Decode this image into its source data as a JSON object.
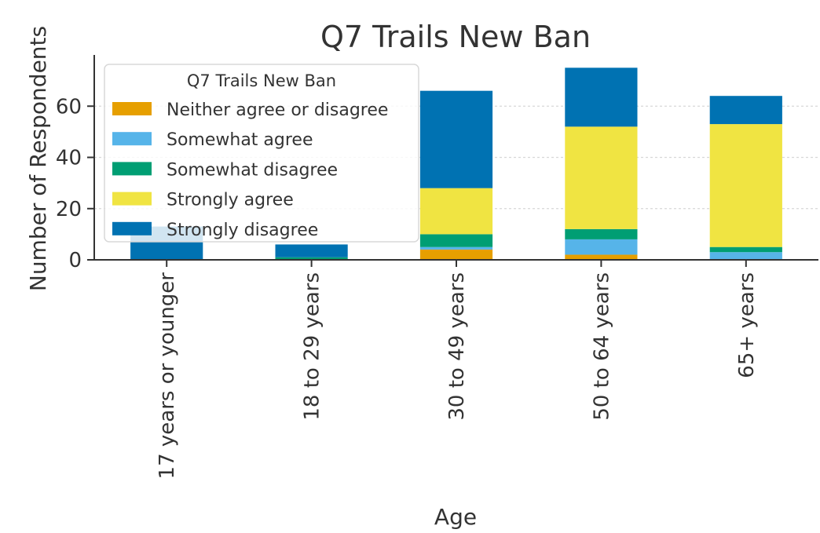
{
  "chart_data": {
    "type": "bar",
    "stacked": true,
    "title": "Q7 Trails New Ban",
    "xlabel": "Age",
    "ylabel": "Number of Respondents",
    "categories": [
      "17 years or younger",
      "18 to 29 years",
      "30 to 49 years",
      "50 to 64 years",
      "65+ years"
    ],
    "y_ticks": [
      "0",
      "20",
      "40",
      "60"
    ],
    "ylim": [
      0,
      80
    ],
    "grid": true,
    "legend": {
      "title": "Q7 Trails New Ban",
      "placement": "top-left"
    },
    "series": [
      {
        "name": "Neither agree or disagree",
        "color": "#E69F00",
        "values": [
          0,
          0,
          4,
          2,
          0
        ]
      },
      {
        "name": "Somewhat agree",
        "color": "#56B4E9",
        "values": [
          0,
          0,
          1,
          6,
          3
        ]
      },
      {
        "name": "Somewhat disagree",
        "color": "#009E73",
        "values": [
          0,
          1,
          5,
          4,
          2
        ]
      },
      {
        "name": "Strongly agree",
        "color": "#F0E442",
        "values": [
          0,
          0,
          18,
          40,
          48
        ]
      },
      {
        "name": "Strongly disagree",
        "color": "#0072B2",
        "values": [
          13,
          5,
          38,
          23,
          11
        ]
      }
    ]
  }
}
